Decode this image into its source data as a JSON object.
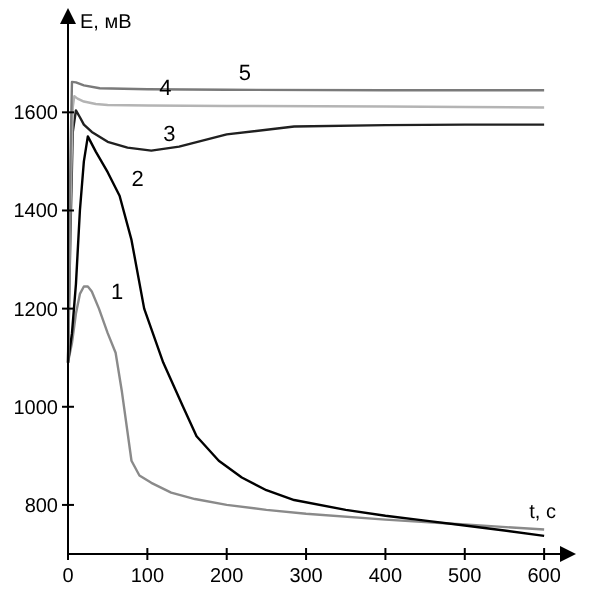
{
  "chart_data": {
    "type": "line",
    "xlabel": "t, c",
    "ylabel": "E, мВ",
    "xlim": [
      0,
      620
    ],
    "ylim": [
      700,
      1780
    ],
    "xticks": [
      0,
      100,
      200,
      300,
      400,
      500,
      600
    ],
    "yticks": [
      800,
      1000,
      1200,
      1400,
      1600
    ],
    "grid": false,
    "marker": "none",
    "line_style": "solid",
    "series": [
      {
        "color": "#8a8a8a",
        "x": [
          0,
          5,
          10,
          15,
          20,
          25,
          30,
          39,
          50,
          60,
          68,
          80,
          90,
          105,
          130,
          160,
          200,
          250,
          300,
          400,
          500,
          600
        ],
        "values": [
          1090,
          1130,
          1190,
          1230,
          1245,
          1245,
          1235,
          1200,
          1150,
          1110,
          1030,
          890,
          860,
          845,
          825,
          812,
          800,
          790,
          782,
          770,
          760,
          750
        ]
      },
      {
        "color": "#000000",
        "x": [
          0,
          5,
          10,
          15,
          20,
          25,
          35,
          50,
          65,
          80,
          96,
          120,
          145,
          162,
          190,
          219,
          250,
          285,
          350,
          400,
          450,
          500,
          550,
          600
        ],
        "values": [
          1090,
          1150,
          1250,
          1400,
          1500,
          1551,
          1520,
          1478,
          1430,
          1340,
          1200,
          1090,
          1000,
          940,
          890,
          856,
          830,
          810,
          790,
          778,
          768,
          758,
          748,
          737
        ]
      },
      {
        "color": "#202020",
        "x": [
          0,
          3,
          6,
          10,
          15,
          20,
          30,
          50,
          75,
          105,
          140,
          200,
          285,
          400,
          500,
          600
        ],
        "values": [
          1090,
          1350,
          1560,
          1604,
          1590,
          1575,
          1560,
          1540,
          1528,
          1522,
          1530,
          1555,
          1571,
          1574,
          1575,
          1575
        ]
      },
      {
        "color": "#b4b4b4",
        "x": [
          0,
          3,
          6,
          8,
          12,
          20,
          35,
          50,
          100,
          200,
          400,
          500,
          600
        ],
        "values": [
          1090,
          1400,
          1610,
          1633,
          1628,
          1622,
          1617,
          1615,
          1614,
          1613,
          1612,
          1611,
          1610
        ]
      },
      {
        "color": "#7a7a7a",
        "x": [
          0,
          3,
          5,
          10,
          20,
          40,
          100,
          200,
          400,
          600
        ],
        "values": [
          1090,
          1500,
          1662,
          1661,
          1655,
          1649,
          1647,
          1646,
          1645,
          1645
        ]
      }
    ],
    "annotations": [
      {
        "text": "1",
        "x": 39,
        "y": 1200
      },
      {
        "text": "2",
        "x": 65,
        "y": 1430
      },
      {
        "text": "3",
        "x": 105,
        "y": 1522
      },
      {
        "text": "4",
        "x": 100,
        "y": 1614
      },
      {
        "text": "5",
        "x": 200,
        "y": 1646
      }
    ]
  }
}
